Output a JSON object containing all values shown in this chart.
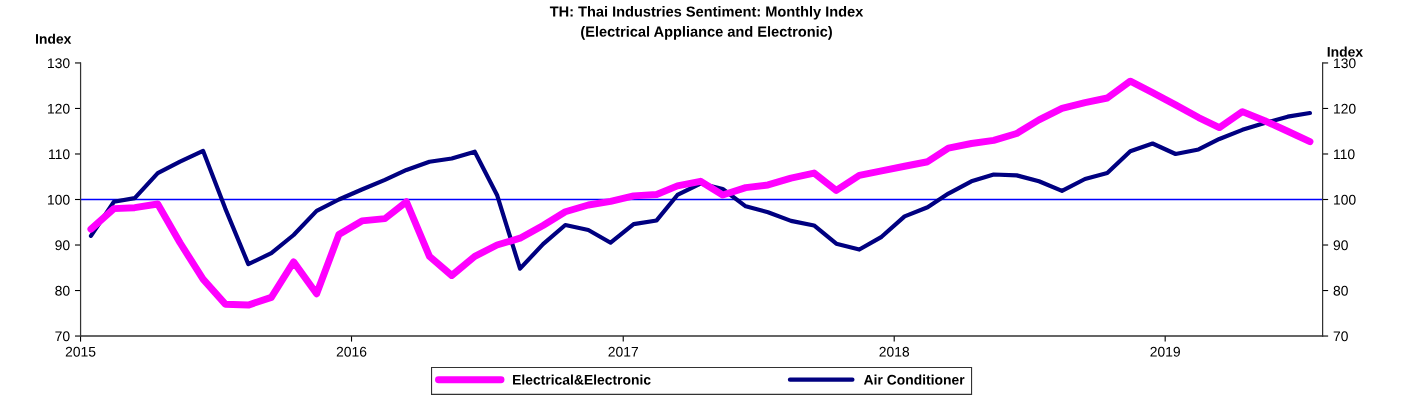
{
  "chart_data": {
    "type": "line",
    "title": "TH: Thai Industries Sentiment: Monthly Index",
    "subtitle": "(Electrical Appliance and Electronic)",
    "ylabel": "Index",
    "y2label": "Index",
    "x": [
      "2015-01-15",
      "2015-02-15",
      "2015-03-15",
      "2015-04-15",
      "2015-05-15",
      "2015-06-15",
      "2015-07-15",
      "2015-08-15",
      "2015-09-15",
      "2015-10-15",
      "2015-11-15",
      "2015-12-15",
      "2016-01-15",
      "2016-02-15",
      "2016-03-15",
      "2016-04-15",
      "2016-05-15",
      "2016-06-15",
      "2016-07-15",
      "2016-08-15",
      "2016-09-15",
      "2016-10-15",
      "2016-11-15",
      "2016-12-15",
      "2017-01-15",
      "2017-02-15",
      "2017-03-15",
      "2017-04-15",
      "2017-05-15",
      "2017-06-15",
      "2017-07-15",
      "2017-08-15",
      "2017-09-15",
      "2017-10-15",
      "2017-11-15",
      "2017-12-15",
      "2018-01-15",
      "2018-02-15",
      "2018-03-15",
      "2018-04-15",
      "2018-05-15",
      "2018-06-15",
      "2018-07-15",
      "2018-08-15",
      "2018-09-15",
      "2018-10-15",
      "2018-11-15",
      "2018-12-15",
      "2019-01-15",
      "2019-02-15",
      "2019-03-15",
      "2019-04-15",
      "2019-05-15",
      "2019-06-15",
      "2019-07-15"
    ],
    "series": [
      {
        "name": "Electrical&Electronic",
        "color": "#ff00ff",
        "values": [
          93.5,
          98,
          98.2,
          99,
          90.5,
          82.5,
          77,
          76.8,
          78.5,
          86.3,
          79.3,
          92.3,
          95.3,
          95.8,
          99.5,
          87.5,
          83.3,
          87.5,
          90,
          91.5,
          94.3,
          97.3,
          98.8,
          99.6,
          100.8,
          101.1,
          103,
          104,
          101,
          102.6,
          103.2,
          104.7,
          105.8,
          102,
          105.3,
          106.3,
          107.3,
          108.3,
          111.3,
          112.3,
          113,
          114.5,
          117.5,
          120,
          121.3,
          122.3,
          126,
          123.5,
          120.8,
          118,
          115.8,
          119.3,
          117.3,
          115,
          112.7
        ]
      },
      {
        "name": "Air Conditioner",
        "color": "#000080",
        "values": [
          92,
          99.5,
          100.3,
          105.8,
          108.3,
          110.7,
          98,
          85.8,
          88.2,
          92.2,
          97.5,
          100,
          102.2,
          104.3,
          106.5,
          108.3,
          109,
          110.5,
          101,
          84.8,
          90.2,
          94.4,
          93.3,
          90.5,
          94.6,
          95.4,
          101,
          103.5,
          102.3,
          98.5,
          97.2,
          95.3,
          94.3,
          90.3,
          89,
          91.8,
          96.3,
          98.3,
          101.3,
          104,
          105.5,
          105.3,
          104,
          101.9,
          104.5,
          105.8,
          110.6,
          112.3,
          110,
          111,
          113.3,
          115.3,
          116.8,
          118.2,
          119
        ]
      }
    ],
    "xlim": [
      "2015-01-01",
      "2019-08-01"
    ],
    "xticks": [
      {
        "value": "2015-01-01",
        "label": "2015"
      },
      {
        "value": "2016-01-01",
        "label": "2016"
      },
      {
        "value": "2017-01-01",
        "label": "2017"
      },
      {
        "value": "2018-01-01",
        "label": "2018"
      },
      {
        "value": "2019-01-01",
        "label": "2019"
      }
    ],
    "ylim": [
      70,
      130
    ],
    "yticks": [
      70,
      80,
      90,
      100,
      110,
      120,
      130
    ],
    "y2lim": [
      70,
      130
    ],
    "y2ticks": [
      70,
      80,
      90,
      100,
      110,
      120,
      130
    ],
    "ref_lines": [
      {
        "axis": "y",
        "value": 100,
        "color": "#0000ff"
      }
    ],
    "grid": false,
    "legend": "bottom",
    "marker": "none",
    "line_style": "solid"
  }
}
